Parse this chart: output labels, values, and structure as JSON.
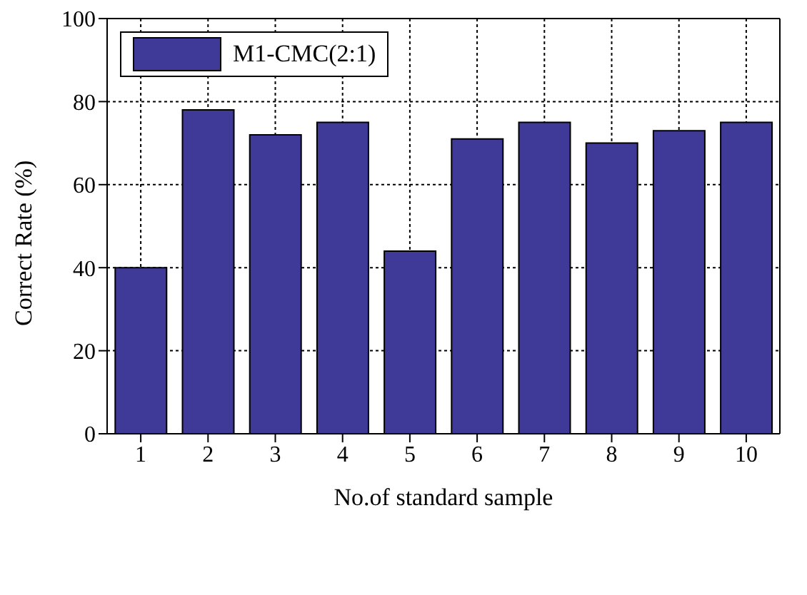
{
  "chart_data": {
    "type": "bar",
    "xlabel": "No.of standard sample",
    "ylabel": "Correct Rate (%)",
    "categories": [
      "1",
      "2",
      "3",
      "4",
      "5",
      "6",
      "7",
      "8",
      "9",
      "10"
    ],
    "series": [
      {
        "name": "M1-CMC(2:1)",
        "color": "#3f3a98",
        "values": [
          40,
          78,
          72,
          75,
          44,
          71,
          75,
          70,
          73,
          75
        ]
      }
    ],
    "ylim": [
      0,
      100
    ],
    "yticks": [
      0,
      20,
      40,
      60,
      80,
      100
    ],
    "grid": true,
    "legend": "top left"
  }
}
